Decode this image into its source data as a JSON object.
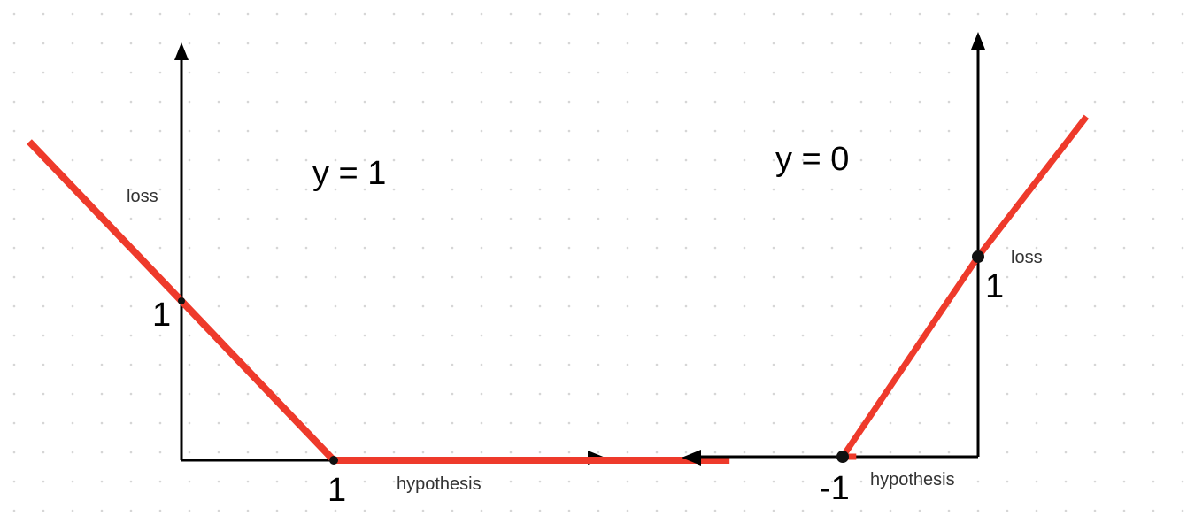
{
  "chart_data": [
    {
      "type": "line",
      "title": "y = 1",
      "xlabel": "hypothesis",
      "ylabel": "loss",
      "x_tick_labels": [
        "1"
      ],
      "y_tick_labels": [
        "1"
      ],
      "series": [
        {
          "x": [
            -1.0,
            1.0,
            3.6
          ],
          "y": [
            2.0,
            0.0,
            0.0
          ]
        }
      ],
      "marked_points": [
        {
          "x": 0,
          "y": 1
        },
        {
          "x": 1,
          "y": 0
        }
      ],
      "color": "#ee3a2b"
    },
    {
      "type": "line",
      "title": "y = 0",
      "xlabel": "hypothesis",
      "ylabel": "loss",
      "x_tick_labels": [
        "-1"
      ],
      "y_tick_labels": [
        "1"
      ],
      "series": [
        {
          "x": [
            -0.9,
            -1.0,
            0.0,
            0.8
          ],
          "y": [
            0.0,
            0.0,
            1.0,
            1.7
          ]
        }
      ],
      "marked_points": [
        {
          "x": -1,
          "y": 0
        },
        {
          "x": 0,
          "y": 1
        }
      ],
      "color": "#ee3a2b"
    }
  ]
}
